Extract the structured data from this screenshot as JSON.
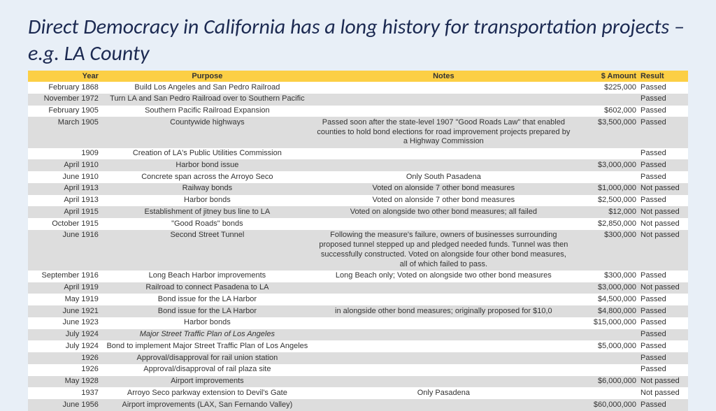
{
  "title": "Direct Democracy in California has a long history for transportation projects –  e.g. LA County",
  "columns": [
    "Year",
    "Purpose",
    "Notes",
    "$ Amount",
    "Result"
  ],
  "rows": [
    {
      "year": "February 1868",
      "purpose": "Build Los Angeles and San Pedro Railroad",
      "notes": "",
      "amount": "$225,000",
      "result": "Passed",
      "shade": false
    },
    {
      "year": "November 1972",
      "purpose": "Turn LA and San Pedro Railroad over to Southern Pacific",
      "notes": "",
      "amount": "",
      "result": "Passed",
      "shade": true
    },
    {
      "year": "February 1905",
      "purpose": "Southern Pacific Railroad Expansion",
      "notes": "",
      "amount": "$602,000",
      "result": "Passed",
      "shade": false
    },
    {
      "year": "March 1905",
      "purpose": "Countywide highways",
      "notes": "Passed soon after the state-level 1907 \"Good Roads Law\" that enabled counties to hold bond elections for road improvement projects prepared by a Highway Commission",
      "amount": "$3,500,000",
      "result": "Passed",
      "shade": true
    },
    {
      "year": "1909",
      "purpose": "Creation of LA's Public Utilities Commission",
      "notes": "",
      "amount": "",
      "result": "Passed",
      "shade": false
    },
    {
      "year": "April 1910",
      "purpose": "Harbor bond issue",
      "notes": "",
      "amount": "$3,000,000",
      "result": "Passed",
      "shade": true
    },
    {
      "year": "June 1910",
      "purpose": "Concrete span across the Arroyo Seco",
      "notes": "Only South Pasadena",
      "amount": "",
      "result": "Passed",
      "shade": false
    },
    {
      "year": "April 1913",
      "purpose": "Railway bonds",
      "notes": "Voted on alonside 7 other bond measures",
      "amount": "$1,000,000",
      "result": "Not passed",
      "shade": true
    },
    {
      "year": "April 1913",
      "purpose": "Harbor bonds",
      "notes": "Voted on alonside 7 other bond measures",
      "amount": "$2,500,000",
      "result": "Passed",
      "shade": false
    },
    {
      "year": "April 1915",
      "purpose": "Establishment of jitney bus line to LA",
      "notes": "Voted on alongside two other bond measures; all failed",
      "amount": "$12,000",
      "result": "Not passed",
      "shade": true
    },
    {
      "year": "October 1915",
      "purpose": "\"Good Roads\" bonds",
      "notes": "",
      "amount": "$2,850,000",
      "result": "Not passed",
      "shade": false
    },
    {
      "year": "June 1916",
      "purpose": "Second Street Tunnel",
      "notes": "Following the measure's failure, owners of businesses surrounding proposed tunnel stepped up and pledged needed funds. Tunnel was then successfully constructed. Voted on alongside four other bond measures, all of which failed to pass.",
      "amount": "$300,000",
      "result": "Not passed",
      "shade": true
    },
    {
      "year": "September 1916",
      "purpose": "Long Beach Harbor improvements",
      "notes": "Long Beach only; Voted on alongside two other bond measures",
      "amount": "$300,000",
      "result": "Passed",
      "shade": false
    },
    {
      "year": "April 1919",
      "purpose": "Railroad to connect Pasadena to LA",
      "notes": "",
      "amount": "$3,000,000",
      "result": "Not passed",
      "shade": true
    },
    {
      "year": "May 1919",
      "purpose": "Bond issue for the LA Harbor",
      "notes": "",
      "amount": "$4,500,000",
      "result": "Passed",
      "shade": false
    },
    {
      "year": "June 1921",
      "purpose": "Bond issue for the LA Harbor",
      "notes": "in alongside other bond measures; originally proposed for $10,0",
      "amount": "$4,800,000",
      "result": "Passed",
      "shade": true
    },
    {
      "year": "June 1923",
      "purpose": "Harbor bonds",
      "notes": "",
      "amount": "$15,000,000",
      "result": "Passed",
      "shade": false
    },
    {
      "year": "July 1924",
      "purpose": "Major Street Traffic Plan of Los Angeles",
      "notes": "",
      "amount": "",
      "result": "Passed",
      "shade": true,
      "italic": true
    },
    {
      "year": "July 1924",
      "purpose": "Bond to implement Major Street Traffic Plan of Los Angeles",
      "notes": "",
      "amount": "$5,000,000",
      "result": "Passed",
      "shade": false
    },
    {
      "year": "1926",
      "purpose": "Approval/disapproval for rail union station",
      "notes": "",
      "amount": "",
      "result": "Passed",
      "shade": true
    },
    {
      "year": "1926",
      "purpose": "Approval/disapproval of rail plaza site",
      "notes": "",
      "amount": "",
      "result": "Passed",
      "shade": false
    },
    {
      "year": "May 1928",
      "purpose": "Airport improvements",
      "notes": "",
      "amount": "$6,000,000",
      "result": "Not passed",
      "shade": true
    },
    {
      "year": "1937",
      "purpose": "Arroyo Seco parkway extension to Devil's Gate",
      "notes": "Only Pasadena",
      "amount": "",
      "result": "Not passed",
      "shade": false
    },
    {
      "year": "June 1956",
      "purpose": "Airport improvements (LAX, San Fernando Valley)",
      "notes": "",
      "amount": "$60,000,000",
      "result": "Passed",
      "shade": true
    }
  ]
}
